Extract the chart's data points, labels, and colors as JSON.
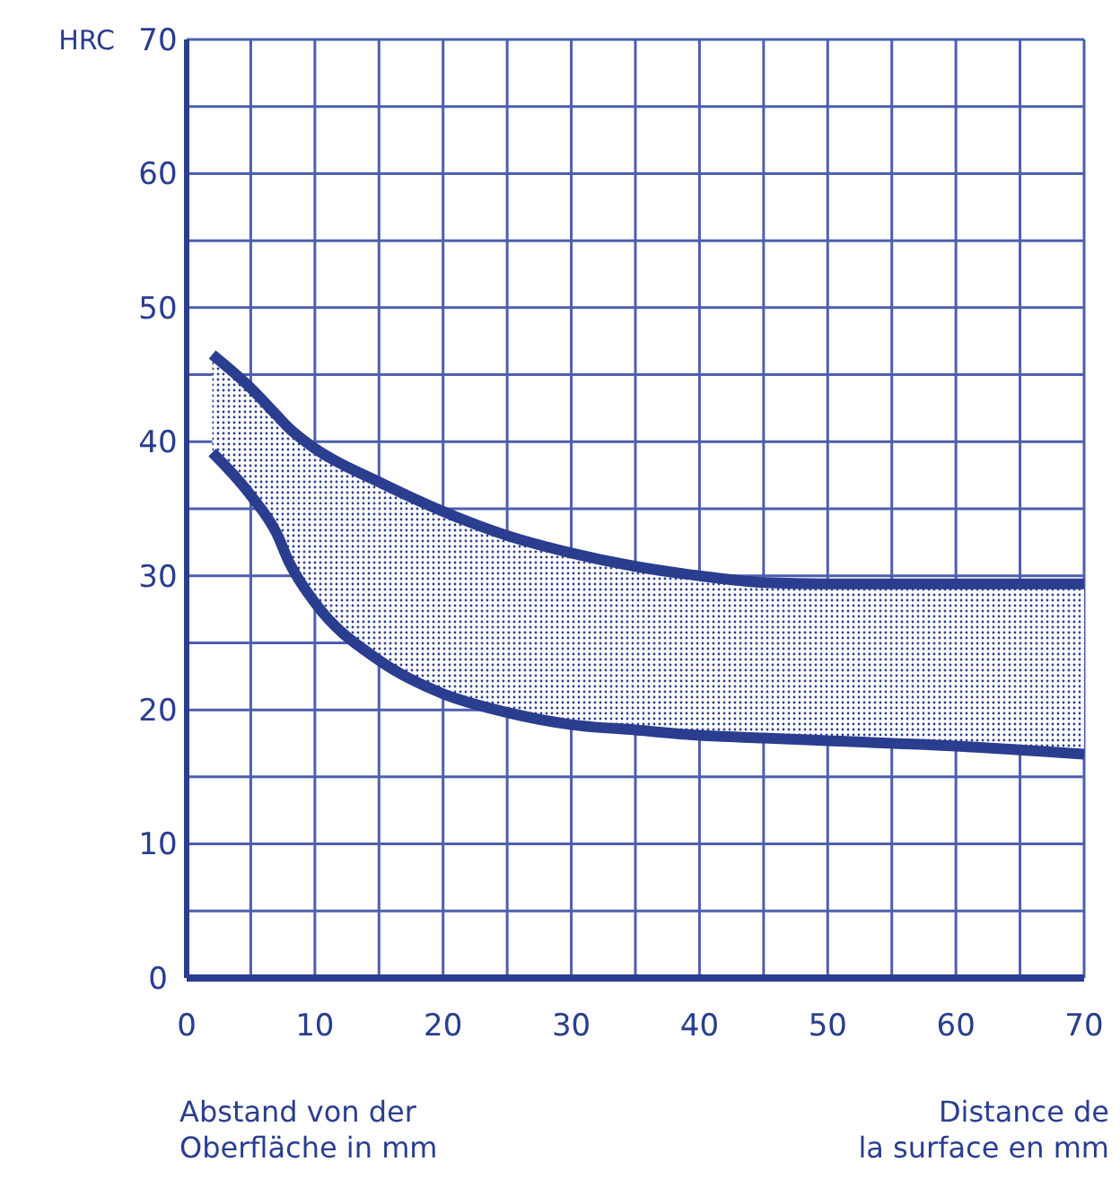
{
  "chart_data": {
    "type": "line",
    "ylabel": "HRC",
    "xlabel": "Abstand von der\nOberfläche in mm",
    "annotations": [
      "Distance de\nla surface en mm"
    ],
    "xlim": [
      0,
      70
    ],
    "ylim": [
      0,
      70
    ],
    "xticks": [
      0,
      {
        "value": 5,
        "label": null
      },
      10,
      {
        "value": 15,
        "label": null
      },
      20,
      {
        "value": 25,
        "label": null
      },
      30,
      {
        "value": 35,
        "label": null
      },
      40,
      {
        "value": 45,
        "label": null
      },
      50,
      {
        "value": 55,
        "label": null
      },
      60,
      {
        "value": 65,
        "label": null
      },
      70
    ],
    "yticks": [
      0,
      {
        "value": 5,
        "label": null
      },
      10,
      {
        "value": 15,
        "label": null
      },
      20,
      {
        "value": 25,
        "label": null
      },
      30,
      {
        "value": 35,
        "label": null
      },
      40,
      {
        "value": 45,
        "label": null
      },
      50,
      {
        "value": 55,
        "label": null
      },
      60,
      {
        "value": 65,
        "label": null
      },
      70
    ],
    "grid": true,
    "x": [
      2,
      5,
      7,
      8,
      10,
      15,
      20,
      25,
      30,
      35,
      40,
      45,
      50,
      60,
      70
    ],
    "series": [
      {
        "color": "#2a3d8f",
        "values": [
          46.5,
          44,
          42,
          41,
          39.5,
          37,
          34.8,
          33,
          31.7,
          30.7,
          30,
          29.5,
          29.4,
          29.4,
          29.4
        ]
      },
      {
        "color": "#2a3d8f",
        "values": [
          39.2,
          36,
          33.2,
          31,
          28,
          23.7,
          21.2,
          19.8,
          18.9,
          18.5,
          18.1,
          17.9,
          17.7,
          17.3,
          16.7
        ]
      }
    ]
  }
}
